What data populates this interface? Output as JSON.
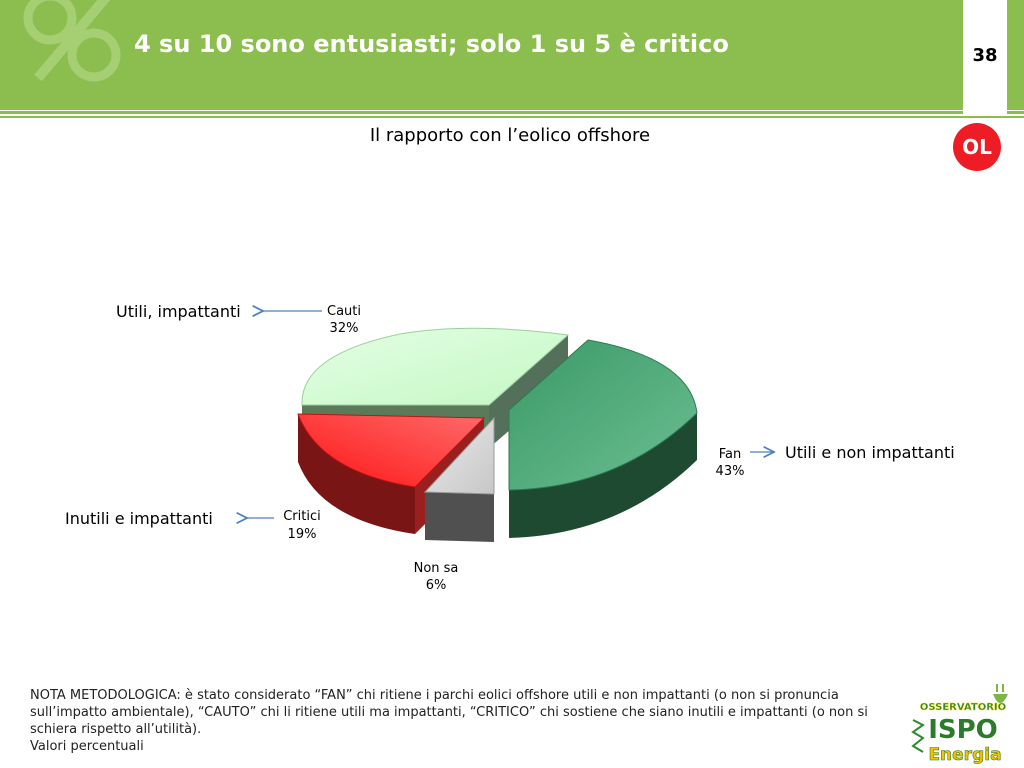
{
  "header": {
    "title": "4 su 10 sono entusiasti; solo 1 su 5 è critico",
    "page_number": "38",
    "badge": "OL"
  },
  "subtitle": "Il rapporto con l’eolico offshore",
  "chart_data": {
    "type": "pie",
    "title": "Il rapporto con l’eolico offshore",
    "slices": [
      {
        "label": "Fan",
        "value": 43,
        "value_label": "43%",
        "color": "#4fa876"
      },
      {
        "label": "Non sa",
        "value": 6,
        "value_label": "6%",
        "color": "#cfcfcf"
      },
      {
        "label": "Critici",
        "value": 19,
        "value_label": "19%",
        "color": "#ff2b2b"
      },
      {
        "label": "Cauti",
        "value": 32,
        "value_label": "32%",
        "color": "#ccffcc"
      }
    ],
    "annotations": [
      {
        "slice": "Cauti",
        "text": "Utili, impattanti"
      },
      {
        "slice": "Fan",
        "text": "Utili e non impattanti"
      },
      {
        "slice": "Critici",
        "text": "Inutili e impattanti"
      }
    ],
    "exploded": true,
    "three_d": true
  },
  "note": {
    "text": "NOTA METODOLOGICA: è stato considerato “FAN” chi ritiene i parchi eolici offshore utili e non impattanti (o non si pronuncia sull’impatto ambientale), “CAUTO” chi li ritiene utili ma impattanti, “CRITICO” chi sostiene che siano inutili e impattanti (o non si schiera rispetto all’utilità).",
    "values": "Valori percentuali"
  },
  "logo": {
    "top": "OSSERVATORIO",
    "middle": "ISPO",
    "bottom": "Energia"
  },
  "colors": {
    "header_green": "#8bbe4e",
    "badge_red": "#ee1c24",
    "arrow_blue": "#4a7fc1"
  }
}
